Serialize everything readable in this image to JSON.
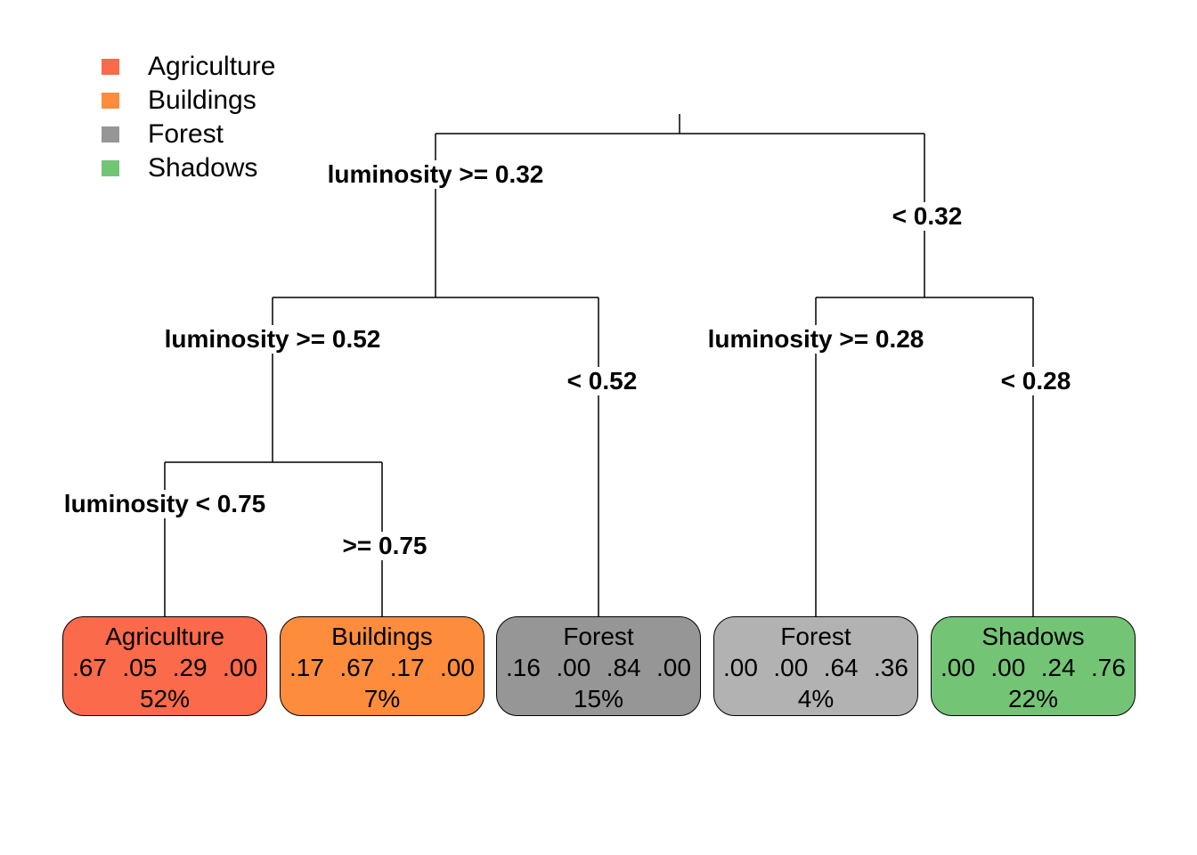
{
  "legend": [
    {
      "label": "Agriculture",
      "color": "#FB6A4A"
    },
    {
      "label": "Buildings",
      "color": "#FD8D3C"
    },
    {
      "label": "Forest",
      "color": "#969696"
    },
    {
      "label": "Shadows",
      "color": "#74C476"
    }
  ],
  "splits": {
    "root_left": "luminosity >= 0.32",
    "root_right": "< 0.32",
    "n2_left": "luminosity >= 0.52",
    "n2_right": "< 0.52",
    "n3_left": "luminosity >= 0.28",
    "n3_right": "< 0.28",
    "n4_left": "luminosity < 0.75",
    "n4_right": ">= 0.75"
  },
  "leaves": [
    {
      "class": "Agriculture",
      "probs": [
        ".67",
        ".05",
        ".29",
        ".00"
      ],
      "percent": "52%",
      "fill": "#FB6A4A"
    },
    {
      "class": "Buildings",
      "probs": [
        ".17",
        ".67",
        ".17",
        ".00"
      ],
      "percent": "7%",
      "fill": "#FD8D3C"
    },
    {
      "class": "Forest",
      "probs": [
        ".16",
        ".00",
        ".84",
        ".00"
      ],
      "percent": "15%",
      "fill": "#969696"
    },
    {
      "class": "Forest",
      "probs": [
        ".00",
        ".00",
        ".64",
        ".36"
      ],
      "percent": "4%",
      "fill": "#B2B2B2"
    },
    {
      "class": "Shadows",
      "probs": [
        ".00",
        ".00",
        ".24",
        ".76"
      ],
      "percent": "22%",
      "fill": "#74C476"
    }
  ]
}
